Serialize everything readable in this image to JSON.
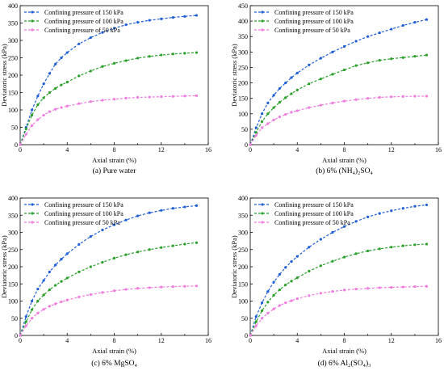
{
  "chart_data": [
    {
      "type": "line",
      "caption": "(a) Pure water",
      "xlabel": "Axial strain (%)",
      "ylabel": "Deviatoric stress (kPa)",
      "xlim": [
        0,
        16
      ],
      "ylim": [
        0,
        400
      ],
      "xticks": [
        0,
        4,
        8,
        12,
        16
      ],
      "yticks": [
        0,
        50,
        100,
        150,
        200,
        250,
        300,
        350,
        400
      ],
      "legend_position": "top-left",
      "series": [
        {
          "name": "Confining pressure of 150 kPa",
          "color": "#1f5fd6",
          "x": [
            0,
            0.5,
            1,
            1.5,
            2,
            2.5,
            3,
            3.5,
            4,
            5,
            6,
            7,
            8,
            9,
            10,
            11,
            12,
            13,
            14,
            15
          ],
          "y": [
            0,
            50,
            100,
            140,
            175,
            205,
            232,
            250,
            265,
            290,
            308,
            323,
            335,
            345,
            352,
            358,
            362,
            366,
            369,
            372
          ]
        },
        {
          "name": "Confining pressure of 100 kPa",
          "color": "#2aa02a",
          "x": [
            0,
            0.5,
            1,
            1.5,
            2,
            2.5,
            3,
            3.5,
            4,
            5,
            6,
            7,
            8,
            9,
            10,
            11,
            12,
            13,
            14,
            15
          ],
          "y": [
            0,
            45,
            85,
            115,
            135,
            150,
            162,
            172,
            180,
            198,
            212,
            225,
            234,
            242,
            249,
            254,
            258,
            261,
            263,
            265
          ]
        },
        {
          "name": "Confining pressure of 50 kPa",
          "color": "#f07ce0",
          "x": [
            0,
            0.5,
            1,
            1.5,
            2,
            2.5,
            3,
            3.5,
            4,
            5,
            6,
            7,
            8,
            9,
            10,
            11,
            12,
            13,
            14,
            15
          ],
          "y": [
            0,
            30,
            55,
            72,
            85,
            95,
            102,
            107,
            111,
            118,
            124,
            128,
            131,
            134,
            136,
            137,
            138,
            139,
            140,
            141
          ]
        }
      ]
    },
    {
      "type": "line",
      "caption": "(b) 6% (NH₄)₂SO₄",
      "xlabel": "Axial strain (%)",
      "ylabel": "Deviatoric stress (kPa)",
      "xlim": [
        0,
        16
      ],
      "ylim": [
        0,
        450
      ],
      "xticks": [
        0,
        4,
        8,
        12,
        16
      ],
      "yticks": [
        0,
        50,
        100,
        150,
        200,
        250,
        300,
        350,
        400,
        450
      ],
      "legend_position": "top-left",
      "series": [
        {
          "name": "Confining pressure of 150 kPa",
          "color": "#1f5fd6",
          "x": [
            0,
            0.5,
            1,
            1.5,
            2,
            2.5,
            3,
            3.5,
            4,
            5,
            6,
            7,
            8,
            9,
            10,
            11,
            12,
            13,
            14,
            15
          ],
          "y": [
            0,
            55,
            100,
            135,
            160,
            182,
            200,
            217,
            232,
            258,
            280,
            300,
            318,
            335,
            350,
            362,
            374,
            386,
            396,
            405
          ]
        },
        {
          "name": "Confining pressure of 100 kPa",
          "color": "#2aa02a",
          "x": [
            0,
            0.5,
            1,
            1.5,
            2,
            2.5,
            3,
            3.5,
            4,
            5,
            6,
            7,
            8,
            9,
            10,
            11,
            12,
            13,
            14,
            15
          ],
          "y": [
            0,
            40,
            75,
            100,
            120,
            137,
            152,
            165,
            177,
            197,
            213,
            228,
            242,
            256,
            265,
            273,
            278,
            282,
            286,
            290
          ]
        },
        {
          "name": "Confining pressure of 50 kPa",
          "color": "#f07ce0",
          "x": [
            0,
            0.5,
            1,
            1.5,
            2,
            2.5,
            3,
            3.5,
            4,
            5,
            6,
            7,
            8,
            9,
            10,
            11,
            12,
            13,
            14,
            15
          ],
          "y": [
            0,
            30,
            55,
            68,
            80,
            90,
            98,
            105,
            110,
            120,
            128,
            135,
            141,
            146,
            150,
            153,
            155,
            156,
            157,
            157
          ]
        }
      ]
    },
    {
      "type": "line",
      "caption": "(c) 6% MgSO₄",
      "xlabel": "Axial strain (%)",
      "ylabel": "Deviatoric stress (kPa)",
      "xlim": [
        0,
        16
      ],
      "ylim": [
        0,
        400
      ],
      "xticks": [
        0,
        4,
        8,
        12,
        16
      ],
      "yticks": [
        0,
        50,
        100,
        150,
        200,
        250,
        300,
        350,
        400
      ],
      "legend_position": "top-left",
      "series": [
        {
          "name": "Confining pressure of 150 kPa",
          "color": "#1f5fd6",
          "x": [
            0,
            0.5,
            1,
            1.5,
            2,
            2.5,
            3,
            3.5,
            4,
            5,
            6,
            7,
            8,
            9,
            10,
            11,
            12,
            13,
            14,
            15
          ],
          "y": [
            0,
            55,
            100,
            135,
            160,
            185,
            205,
            222,
            238,
            265,
            288,
            307,
            322,
            336,
            348,
            357,
            364,
            370,
            374,
            378
          ]
        },
        {
          "name": "Confining pressure of 100 kPa",
          "color": "#2aa02a",
          "x": [
            0,
            0.5,
            1,
            1.5,
            2,
            2.5,
            3,
            3.5,
            4,
            5,
            6,
            7,
            8,
            9,
            10,
            11,
            12,
            13,
            14,
            15
          ],
          "y": [
            0,
            40,
            75,
            100,
            118,
            133,
            146,
            157,
            167,
            185,
            200,
            213,
            225,
            235,
            243,
            250,
            256,
            261,
            266,
            270
          ]
        },
        {
          "name": "Confining pressure of 50 kPa",
          "color": "#f07ce0",
          "x": [
            0,
            0.5,
            1,
            1.5,
            2,
            2.5,
            3,
            3.5,
            4,
            5,
            6,
            7,
            8,
            9,
            10,
            11,
            12,
            13,
            14,
            15
          ],
          "y": [
            0,
            28,
            50,
            65,
            76,
            85,
            92,
            98,
            103,
            112,
            119,
            125,
            130,
            134,
            137,
            139,
            141,
            142,
            143,
            144
          ]
        }
      ]
    },
    {
      "type": "line",
      "caption": "(d) 6% Al₂(SO₄)₃",
      "xlabel": "Axial strain (%)",
      "ylabel": "Deviatoric stress (kPa)",
      "xlim": [
        0,
        16
      ],
      "ylim": [
        0,
        400
      ],
      "xticks": [
        0,
        4,
        8,
        12,
        16
      ],
      "yticks": [
        0,
        50,
        100,
        150,
        200,
        250,
        300,
        350,
        400
      ],
      "legend_position": "top-left",
      "series": [
        {
          "name": "Confining pressure of 150 kPa",
          "color": "#1f5fd6",
          "x": [
            0,
            0.5,
            1,
            1.5,
            2,
            2.5,
            3,
            3.5,
            4,
            5,
            6,
            7,
            8,
            9,
            10,
            11,
            12,
            13,
            14,
            15
          ],
          "y": [
            0,
            55,
            95,
            128,
            155,
            178,
            198,
            215,
            230,
            257,
            280,
            300,
            317,
            332,
            345,
            355,
            363,
            370,
            376,
            380
          ]
        },
        {
          "name": "Confining pressure of 100 kPa",
          "color": "#2aa02a",
          "x": [
            0,
            0.5,
            1,
            1.5,
            2,
            2.5,
            3,
            3.5,
            4,
            5,
            6,
            7,
            8,
            9,
            10,
            11,
            12,
            13,
            14,
            15
          ],
          "y": [
            0,
            40,
            72,
            97,
            117,
            133,
            147,
            158,
            168,
            187,
            203,
            216,
            228,
            238,
            246,
            252,
            257,
            261,
            264,
            266
          ]
        },
        {
          "name": "Confining pressure of 50 kPa",
          "color": "#f07ce0",
          "x": [
            0,
            0.5,
            1,
            1.5,
            2,
            2.5,
            3,
            3.5,
            4,
            5,
            6,
            7,
            8,
            9,
            10,
            11,
            12,
            13,
            14,
            15
          ],
          "y": [
            0,
            28,
            50,
            65,
            77,
            87,
            95,
            101,
            107,
            116,
            123,
            128,
            132,
            135,
            137,
            139,
            140,
            141,
            142,
            143
          ]
        }
      ]
    }
  ]
}
